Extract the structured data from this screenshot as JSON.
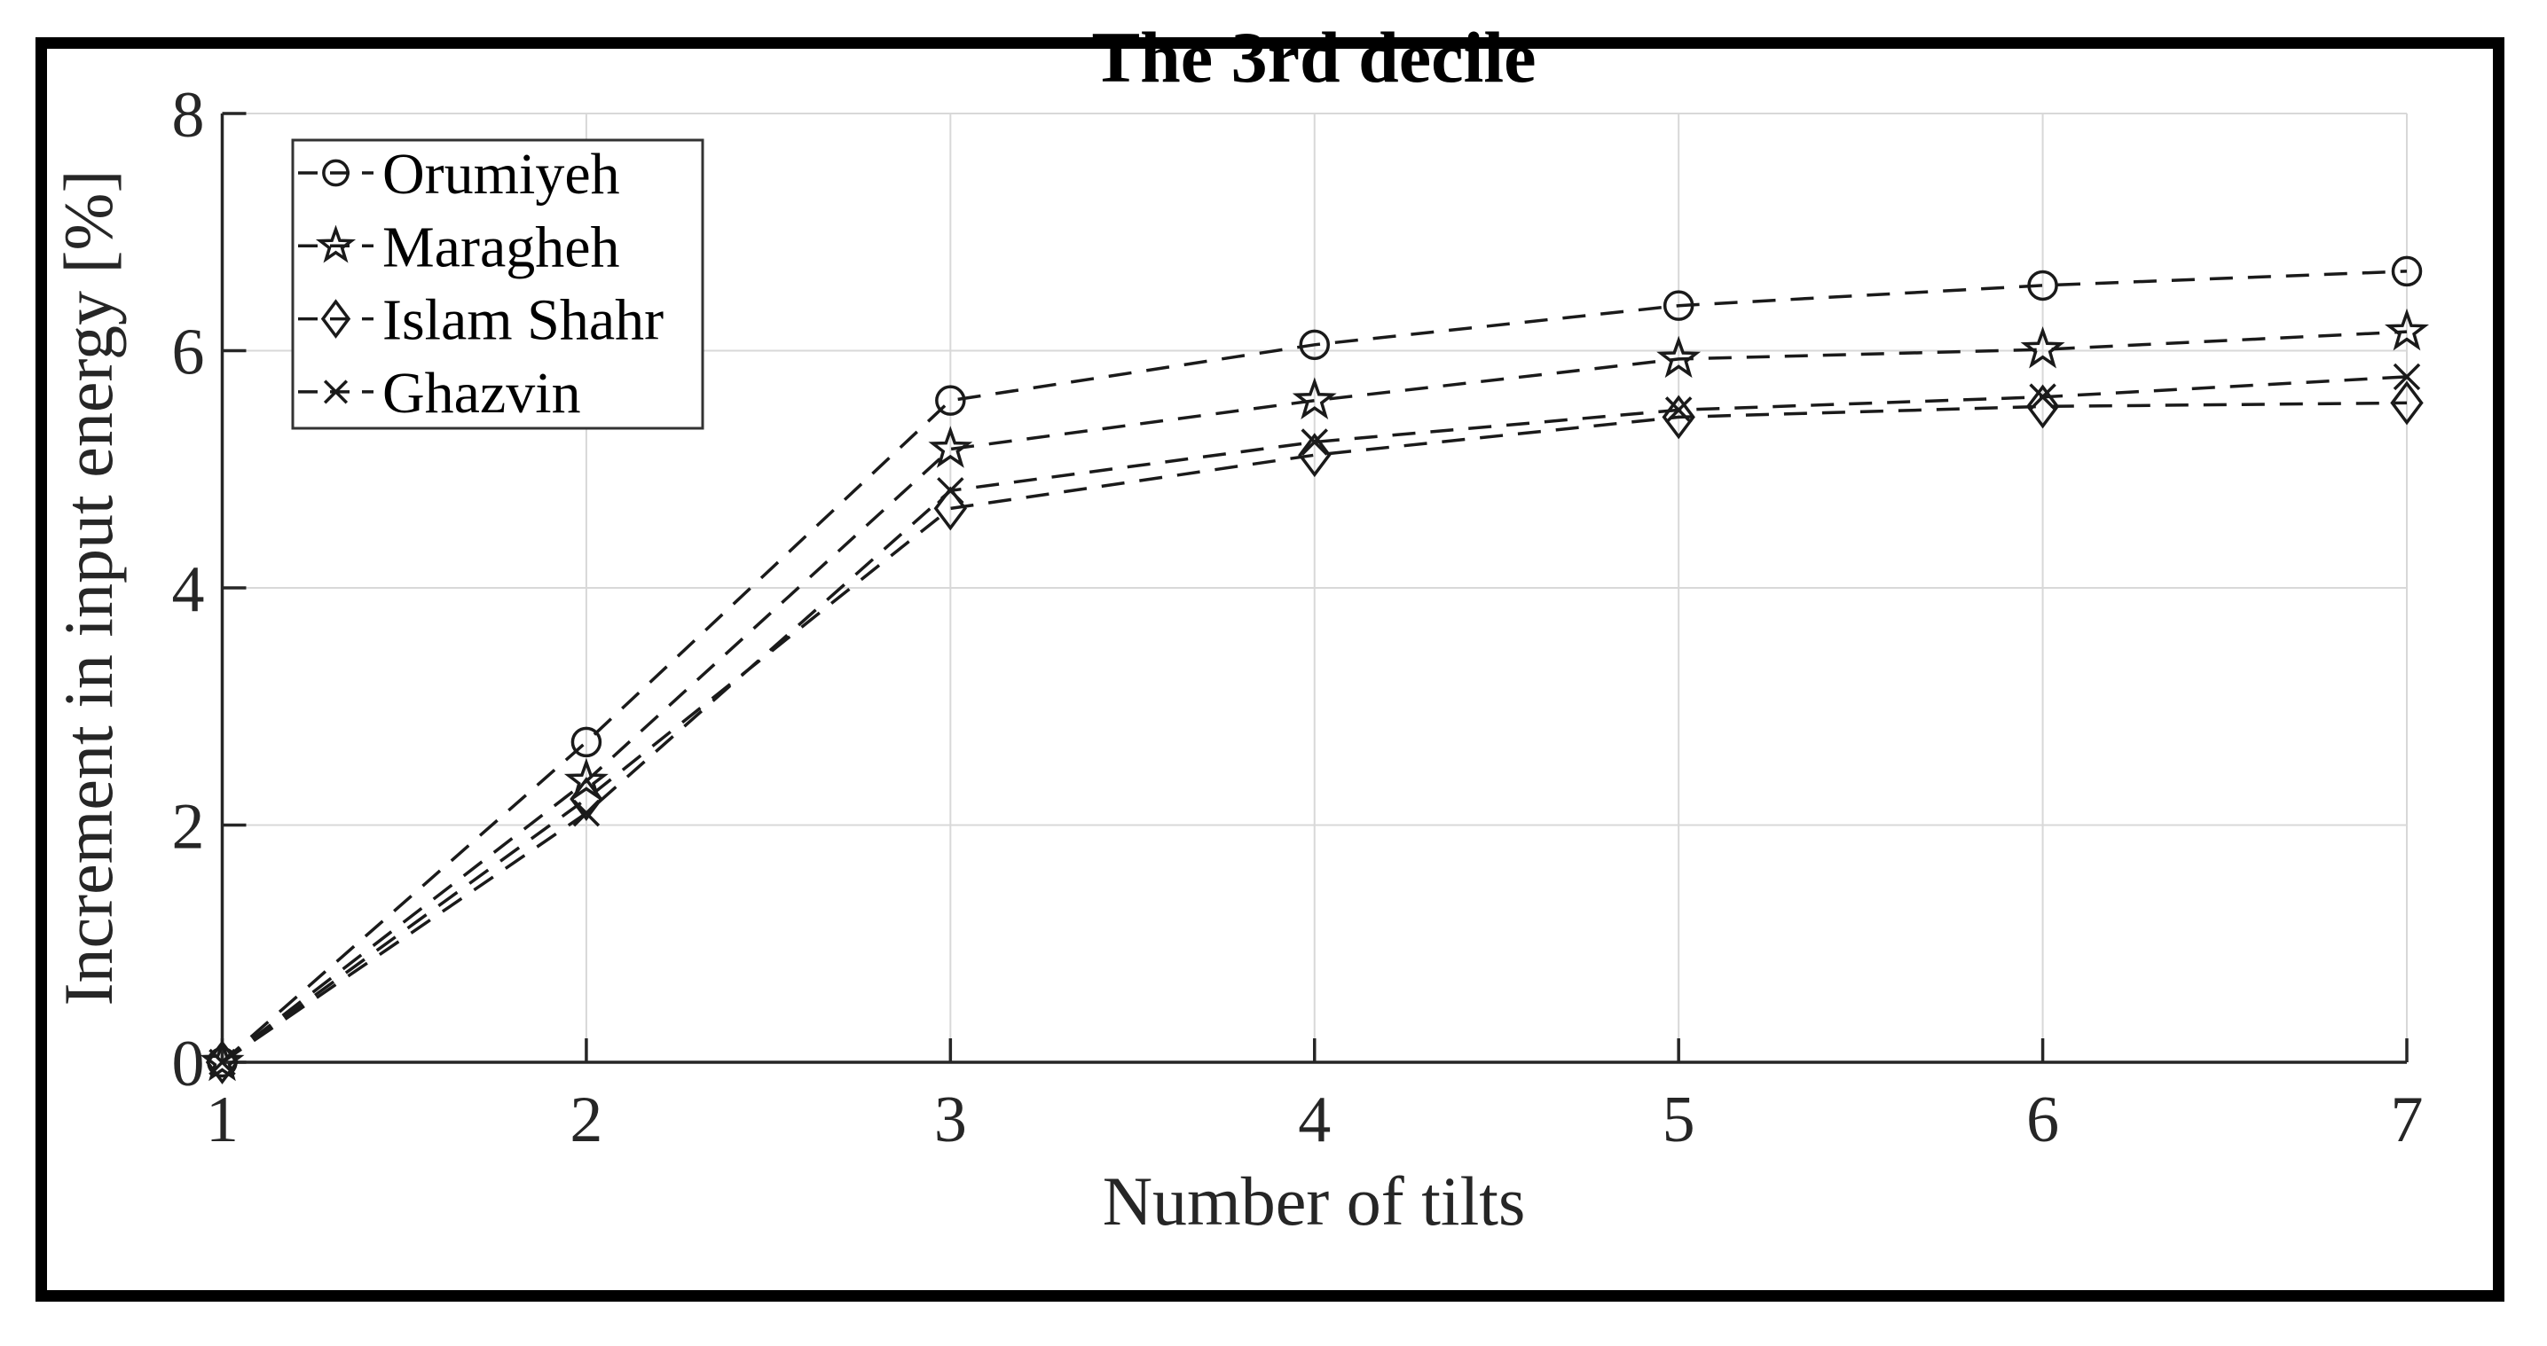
{
  "figure": {
    "frame_color": "#000000",
    "background_color": "#ffffff"
  },
  "chart_data": {
    "type": "line",
    "title": "The 3rd decile",
    "xlabel": "Number of tilts",
    "ylabel": "Increment in input energy [%]",
    "x": [
      1,
      2,
      3,
      4,
      5,
      6,
      7
    ],
    "xlim": [
      1,
      7
    ],
    "ylim": [
      0,
      8
    ],
    "xticks": [
      1,
      2,
      3,
      4,
      5,
      6,
      7
    ],
    "yticks": [
      0,
      2,
      4,
      6,
      8
    ],
    "grid": true,
    "line_style": "dashed",
    "line_color": "#1a1a1a",
    "grid_color": "#d8d8d8",
    "axis_color": "#262626",
    "legend_position": "top-left",
    "series": [
      {
        "name": "Orumiyeh",
        "marker": "circle",
        "values": [
          0,
          2.7,
          5.58,
          6.05,
          6.38,
          6.55,
          6.67
        ]
      },
      {
        "name": "Maragheh",
        "marker": "star",
        "values": [
          0,
          2.37,
          5.17,
          5.58,
          5.93,
          6.01,
          6.16
        ]
      },
      {
        "name": "Islam Shahr",
        "marker": "diamond",
        "values": [
          0,
          2.22,
          4.67,
          5.12,
          5.44,
          5.53,
          5.56
        ]
      },
      {
        "name": "Ghazvin",
        "marker": "x",
        "values": [
          0,
          2.1,
          4.82,
          5.23,
          5.5,
          5.61,
          5.78
        ]
      }
    ]
  }
}
